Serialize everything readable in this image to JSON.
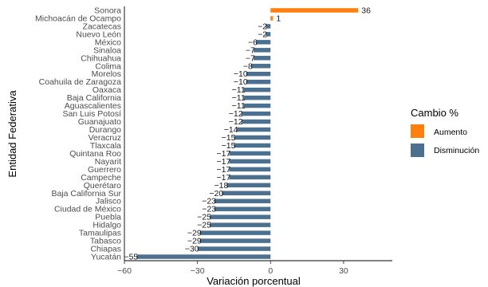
{
  "chart_data": {
    "type": "bar",
    "orientation": "horizontal",
    "xlabel": "Variación porcentual",
    "ylabel": "Entidad Federativa",
    "xlim": [
      -60,
      50
    ],
    "xticks": [
      -60,
      -30,
      0,
      30
    ],
    "tick_labels": [
      "−60",
      "−30",
      "0",
      "30"
    ],
    "grid": false,
    "legend": {
      "title": "Cambio %",
      "position": "right",
      "items": [
        {
          "label": "Aumento",
          "color": "#FF7F0E"
        },
        {
          "label": "Disminución",
          "color": "#4C7190"
        }
      ]
    },
    "categories": [
      "Sonora",
      "Michoacán de Ocampo",
      "Zacatecas",
      "Nuevo León",
      "México",
      "Sinaloa",
      "Chihuahua",
      "Colima",
      "Morelos",
      "Coahuila de Zaragoza",
      "Oaxaca",
      "Baja California",
      "Aguascalientes",
      "San Luis Potosí",
      "Guanajuato",
      "Durango",
      "Veracruz",
      "Tlaxcala",
      "Quintana Roo",
      "Nayarit",
      "Guerrero",
      "Campeche",
      "Querétaro",
      "Baja California Sur",
      "Jalisco",
      "Ciudad de México",
      "Puebla",
      "Hidalgo",
      "Tamaulipas",
      "Tabasco",
      "Chiapas",
      "Yucatán"
    ],
    "values": [
      36,
      1,
      -2,
      -2,
      -6,
      -7,
      -7,
      -8,
      -10,
      -10,
      -11,
      -11,
      -11,
      -12,
      -12,
      -14,
      -15,
      -15,
      -17,
      -17,
      -17,
      -17,
      -18,
      -20,
      -23,
      -23,
      -25,
      -25,
      -29,
      -29,
      -30,
      -55
    ],
    "value_labels": [
      "36",
      "1",
      "−2",
      "−2",
      "−6",
      "−7",
      "−7",
      "−8",
      "−10",
      "−10",
      "−11",
      "−11",
      "−11",
      "−12",
      "−12",
      "−14",
      "−15",
      "−15",
      "−17",
      "−17",
      "−17",
      "−17",
      "−18",
      "−20",
      "−23",
      "−23",
      "−25",
      "−25",
      "−29",
      "−29",
      "−30",
      "−55"
    ]
  }
}
